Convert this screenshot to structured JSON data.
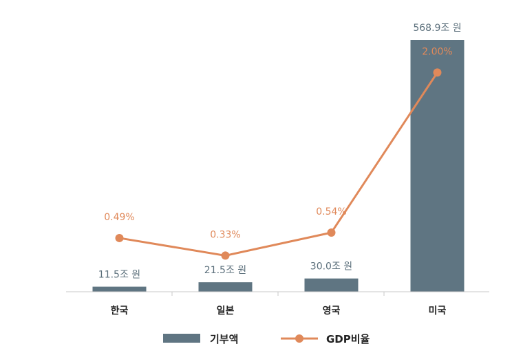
{
  "chart_data": {
    "type": "bar",
    "title": "",
    "xlabel": "",
    "ylabel": "",
    "categories": [
      "한국",
      "일본",
      "영국",
      "미국"
    ],
    "series": [
      {
        "name": "기부액",
        "type": "bar",
        "values": [
          11.5,
          21.5,
          30.0,
          568.9
        ],
        "labels": [
          "11.5조 원",
          "21.5조 원",
          "30.0조 원",
          "568.9조 원"
        ],
        "color": "#5f7582"
      },
      {
        "name": "GDP비율",
        "type": "line",
        "values": [
          0.49,
          0.33,
          0.54,
          2.0
        ],
        "labels": [
          "0.49%",
          "0.33%",
          "0.54%",
          "2.00%"
        ],
        "color": "#e0895a"
      }
    ],
    "bar_ylim": [
      0,
      568.9
    ],
    "line_ylim": [
      0,
      2.3
    ],
    "grid": false,
    "legend_position": "bottom-center"
  }
}
